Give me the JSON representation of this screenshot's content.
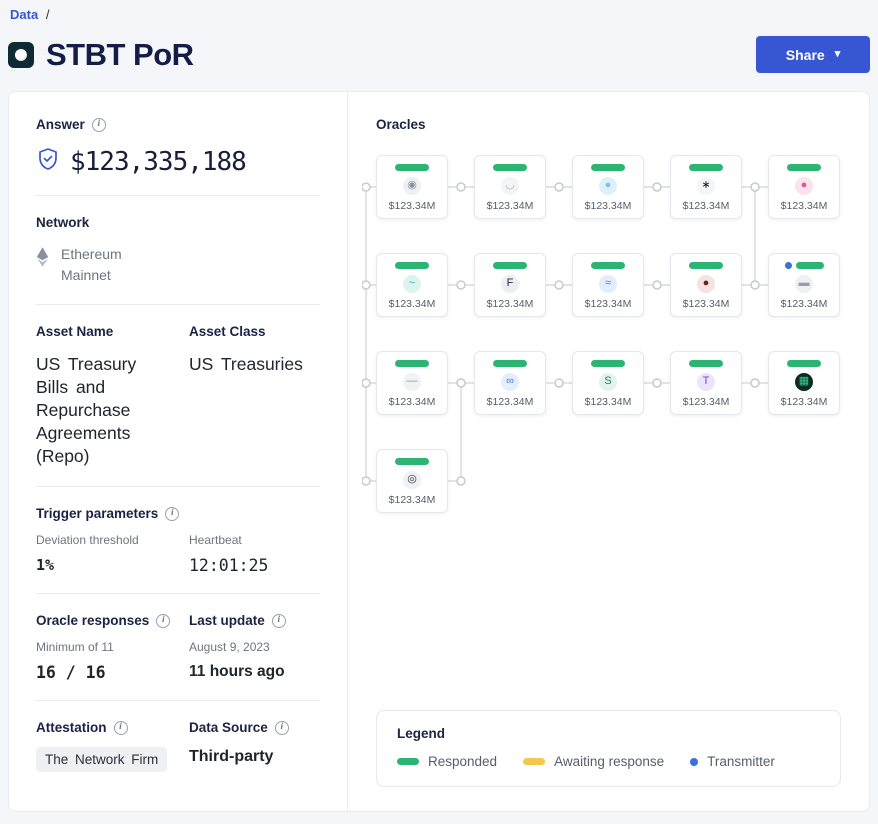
{
  "icons": {
    "info": "i",
    "chevron_down": "▾"
  },
  "colors": {
    "brand_blue": "#3756d3",
    "responded_green": "#2cb473",
    "awaiting_yellow": "#f2c94c",
    "transmitter_blue": "#3b6fe0",
    "heading_navy": "#141d46"
  },
  "breadcrumb": {
    "data": "Data",
    "separator": "/"
  },
  "header": {
    "title": "STBT PoR",
    "share": "Share"
  },
  "panel": {
    "answer": {
      "label": "Answer",
      "value": "$123,335,188"
    },
    "network": {
      "label": "Network",
      "value": "Ethereum Mainnet"
    },
    "asset_name": {
      "label": "Asset Name",
      "value": "US Treasury Bills and Repurchase Agreements (Repo)"
    },
    "asset_class": {
      "label": "Asset Class",
      "value": "US Treasuries"
    },
    "trigger": {
      "label": "Trigger parameters",
      "deviation_label": "Deviation threshold",
      "deviation_value": "1%",
      "heartbeat_label": "Heartbeat",
      "heartbeat_value": "12:01:25"
    },
    "responses": {
      "label": "Oracle responses",
      "sub": "Minimum of 11",
      "value": "16 / 16"
    },
    "last_update": {
      "label": "Last update",
      "sub": "August 9, 2023",
      "value": "11 hours ago"
    },
    "attestation": {
      "label": "Attestation",
      "value": "The Network Firm"
    },
    "data_source": {
      "label": "Data Source",
      "value": "Third-party"
    }
  },
  "oracles": {
    "label": "Oracles",
    "nodes": [
      {
        "value": "$123.34M",
        "transmitter": false,
        "icon": {
          "glyph": "◉",
          "bg": "#eef0f4",
          "fg": "#8b93a3"
        }
      },
      {
        "value": "$123.34M",
        "transmitter": false,
        "icon": {
          "glyph": "◡",
          "bg": "#f3f4f6",
          "fg": "#aab0bb"
        }
      },
      {
        "value": "$123.34M",
        "transmitter": false,
        "icon": {
          "glyph": "●",
          "bg": "#dff0fb",
          "fg": "#7cc4ef"
        }
      },
      {
        "value": "$123.34M",
        "transmitter": false,
        "icon": {
          "glyph": "∗",
          "bg": "#f4f5f7",
          "fg": "#16181d"
        }
      },
      {
        "value": "$123.34M",
        "transmitter": false,
        "icon": {
          "glyph": "●",
          "bg": "#fbe3ee",
          "fg": "#e0549a"
        }
      },
      {
        "value": "$123.34M",
        "transmitter": false,
        "icon": {
          "glyph": "~",
          "bg": "#ddf3ef",
          "fg": "#27b3a2"
        }
      },
      {
        "value": "$123.34M",
        "transmitter": false,
        "icon": {
          "glyph": "F",
          "bg": "#eceef2",
          "fg": "#232c3a"
        }
      },
      {
        "value": "$123.34M",
        "transmitter": false,
        "icon": {
          "glyph": "≈",
          "bg": "#e2edfc",
          "fg": "#3d7ee8"
        }
      },
      {
        "value": "$123.34M",
        "transmitter": false,
        "icon": {
          "glyph": "●",
          "bg": "#f3e4e1",
          "fg": "#66251a"
        }
      },
      {
        "value": "$123.34M",
        "transmitter": true,
        "icon": {
          "glyph": "▬",
          "bg": "#eef0f3",
          "fg": "#959cab"
        }
      },
      {
        "value": "$123.34M",
        "transmitter": false,
        "icon": {
          "glyph": "—",
          "bg": "#f1f2f5",
          "fg": "#8d95a4"
        }
      },
      {
        "value": "$123.34M",
        "transmitter": false,
        "icon": {
          "glyph": "∞",
          "bg": "#e4eefc",
          "fg": "#3b79e3"
        }
      },
      {
        "value": "$123.34M",
        "transmitter": false,
        "icon": {
          "glyph": "S",
          "bg": "#e2f2ec",
          "fg": "#27815f"
        }
      },
      {
        "value": "$123.34M",
        "transmitter": false,
        "icon": {
          "glyph": "T",
          "bg": "#ece5fa",
          "fg": "#7a3ff2"
        }
      },
      {
        "value": "$123.34M",
        "transmitter": false,
        "icon": {
          "glyph": "▦",
          "bg": "#0f2b21",
          "fg": "#35d08e"
        }
      },
      {
        "value": "$123.34M",
        "transmitter": false,
        "icon": {
          "glyph": "◎",
          "bg": "#f0f1f4",
          "fg": "#3a3f4a"
        }
      }
    ]
  },
  "legend": {
    "label": "Legend",
    "items": [
      {
        "label": "Responded",
        "swatch": "bar",
        "color": "#2cb473"
      },
      {
        "label": "Awaiting response",
        "swatch": "bar",
        "color": "#f2c94c"
      },
      {
        "label": "Transmitter",
        "swatch": "dot",
        "color": "#3b6fe0"
      }
    ]
  }
}
